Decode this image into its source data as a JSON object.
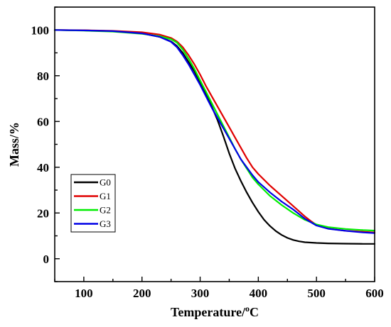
{
  "chart_data": {
    "type": "line",
    "xlabel": "Temperature/",
    "xlabel_unit": "C",
    "xlabel_unit_sup": "o",
    "ylabel": "Mass/%",
    "xlim": [
      50,
      600
    ],
    "ylim": [
      -10,
      110
    ],
    "xticks": [
      100,
      200,
      300,
      400,
      500,
      600
    ],
    "yticks": [
      0,
      20,
      40,
      60,
      80,
      100
    ],
    "grid": false,
    "legend_position": "left-bottom",
    "series": [
      {
        "name": "G0",
        "color": "#000000",
        "x": [
          50,
          100,
          150,
          200,
          230,
          250,
          260,
          270,
          280,
          290,
          300,
          310,
          320,
          330,
          340,
          350,
          360,
          370,
          380,
          390,
          400,
          410,
          420,
          430,
          440,
          450,
          460,
          470,
          480,
          500,
          520,
          550,
          580,
          600
        ],
        "y": [
          100,
          99.8,
          99.5,
          98.5,
          97,
          95,
          93,
          90,
          86,
          82,
          77,
          72,
          66.5,
          60.5,
          53.5,
          46,
          39.5,
          34,
          29,
          24.5,
          20.5,
          17,
          14.3,
          12.1,
          10.4,
          9.1,
          8.2,
          7.6,
          7.2,
          6.9,
          6.7,
          6.6,
          6.5,
          6.5
        ]
      },
      {
        "name": "G1",
        "color": "#e00000",
        "x": [
          50,
          100,
          150,
          200,
          230,
          250,
          260,
          270,
          280,
          290,
          300,
          310,
          320,
          330,
          340,
          350,
          360,
          370,
          380,
          390,
          400,
          420,
          440,
          460,
          480,
          490,
          500,
          520,
          550,
          580,
          600
        ],
        "y": [
          100,
          99.9,
          99.6,
          99,
          98,
          96.5,
          95,
          92.5,
          89,
          85,
          80.5,
          75.5,
          71,
          66.5,
          62,
          57.5,
          53,
          48.5,
          44,
          40,
          37,
          32,
          27.5,
          23,
          18.5,
          16.5,
          14.8,
          13.2,
          12.2,
          11.8,
          11.5
        ]
      },
      {
        "name": "G2",
        "color": "#00ee00",
        "x": [
          50,
          100,
          150,
          200,
          230,
          250,
          260,
          270,
          280,
          290,
          300,
          310,
          320,
          330,
          340,
          350,
          360,
          370,
          380,
          390,
          400,
          420,
          440,
          460,
          480,
          500,
          520,
          550,
          580,
          600
        ],
        "y": [
          100,
          99.7,
          99.3,
          98.3,
          97.3,
          96,
          94.5,
          91.5,
          87.5,
          83,
          78,
          73,
          68,
          63,
          58,
          53,
          48,
          43.5,
          39.5,
          35.5,
          32.5,
          27.5,
          23.5,
          20,
          17,
          15,
          13.8,
          13,
          12.5,
          12.3
        ]
      },
      {
        "name": "G3",
        "color": "#0000e6",
        "x": [
          50,
          100,
          150,
          200,
          230,
          250,
          260,
          270,
          280,
          290,
          300,
          310,
          320,
          330,
          340,
          350,
          360,
          370,
          380,
          390,
          400,
          420,
          440,
          460,
          480,
          500,
          520,
          550,
          580,
          600
        ],
        "y": [
          100,
          99.8,
          99.5,
          98.5,
          97,
          94.8,
          92.5,
          89,
          85,
          80.5,
          76,
          71,
          66,
          61.5,
          57,
          52.5,
          48,
          43.5,
          40,
          36.5,
          33.5,
          29,
          25,
          21.5,
          17.5,
          14.5,
          13.1,
          12.2,
          11.5,
          11.2
        ]
      }
    ]
  }
}
